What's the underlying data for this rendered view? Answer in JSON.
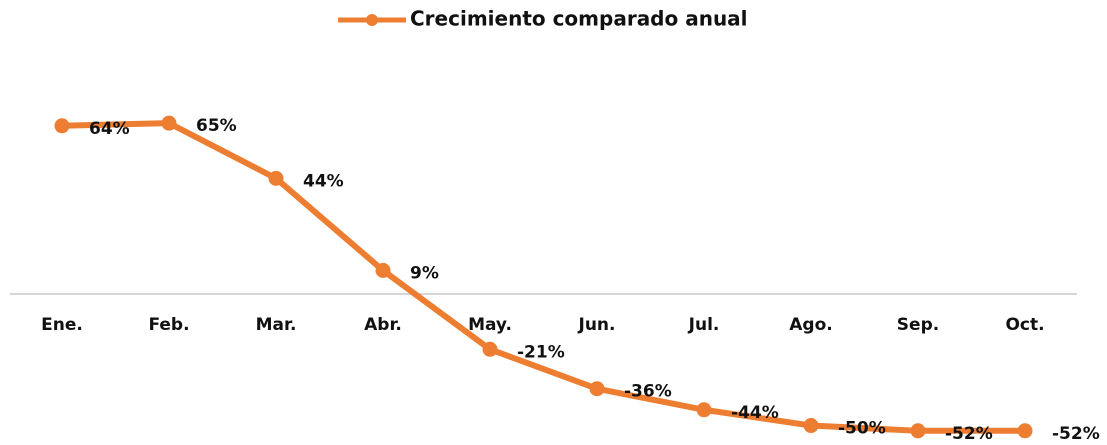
{
  "chart_data": {
    "type": "line",
    "categories": [
      "Ene.",
      "Feb.",
      "Mar.",
      "Abr.",
      "May.",
      "Jun.",
      "Jul.",
      "Ago.",
      "Sep.",
      "Oct."
    ],
    "series": [
      {
        "name": "Crecimiento comparado anual",
        "color": "#ED7D31",
        "values": [
          64,
          65,
          44,
          9,
          -21,
          -36,
          -44,
          -50,
          -52,
          -52
        ],
        "value_labels": [
          "64%",
          "65%",
          "44%",
          "9%",
          "-21%",
          "-36%",
          "-44%",
          "-50%",
          "-52%",
          "-52%"
        ]
      }
    ],
    "ylim": [
      -55,
      70
    ],
    "legend": "top"
  }
}
